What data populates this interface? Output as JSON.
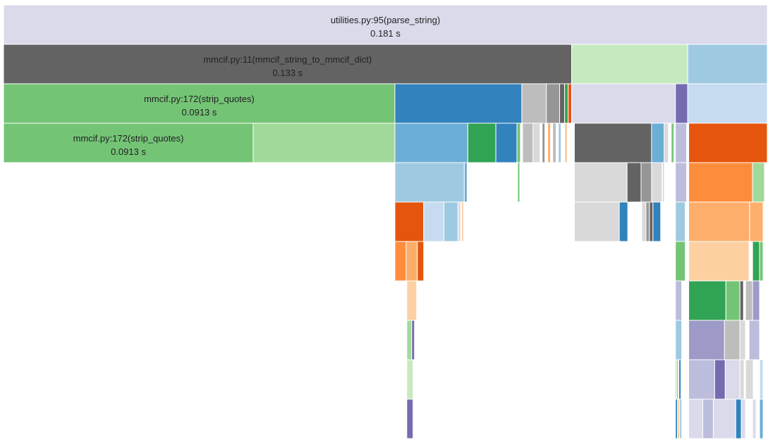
{
  "chart_data": {
    "type": "icicle",
    "title": "",
    "blocks": [
      {
        "depth": 0,
        "x0": 0.0,
        "x1": 1.0,
        "color": "#dadaeb",
        "name": "utilities.py:95(parse_string)",
        "time": "0.181 s"
      },
      {
        "depth": 1,
        "x0": 0.0,
        "x1": 0.7438,
        "color": "#636363",
        "name": "mmcif.py:11(mmcif_string_to_mmcif_dict)",
        "time": "0.133 s"
      },
      {
        "depth": 1,
        "x0": 0.7438,
        "x1": 0.8958,
        "color": "#c7e9c0"
      },
      {
        "depth": 1,
        "x0": 0.8958,
        "x1": 1.0,
        "color": "#9ecae1"
      },
      {
        "depth": 2,
        "x0": 0.0,
        "x1": 0.5124,
        "color": "#74c476",
        "name": "mmcif.py:172(strip_quotes)",
        "time": "0.0913 s"
      },
      {
        "depth": 2,
        "x0": 0.5124,
        "x1": 0.6786,
        "color": "#3182bd"
      },
      {
        "depth": 2,
        "x0": 0.6786,
        "x1": 0.7107,
        "color": "#bdbdbd"
      },
      {
        "depth": 2,
        "x0": 0.7107,
        "x1": 0.7281,
        "color": "#969696"
      },
      {
        "depth": 2,
        "x0": 0.7281,
        "x1": 0.7346,
        "color": "#636363"
      },
      {
        "depth": 2,
        "x0": 0.7346,
        "x1": 0.7392,
        "color": "#31a354"
      },
      {
        "depth": 2,
        "x0": 0.7392,
        "x1": 0.7438,
        "color": "#e6550d"
      },
      {
        "depth": 2,
        "x0": 0.7438,
        "x1": 0.8797,
        "color": "#dadaeb"
      },
      {
        "depth": 2,
        "x0": 0.8797,
        "x1": 0.8958,
        "color": "#756bb1"
      },
      {
        "depth": 2,
        "x0": 0.8958,
        "x1": 1.0,
        "color": "#c6dbef"
      },
      {
        "depth": 3,
        "x0": 0.0,
        "x1": 0.3269,
        "color": "#74c476",
        "name": "mmcif.py:172(strip_quotes)",
        "time": "0.0913 s"
      },
      {
        "depth": 3,
        "x0": 0.3269,
        "x1": 0.5124,
        "color": "#a1d99b"
      },
      {
        "depth": 3,
        "x0": 0.5124,
        "x1": 0.6079,
        "color": "#6baed6"
      },
      {
        "depth": 3,
        "x0": 0.6079,
        "x1": 0.6446,
        "color": "#31a354"
      },
      {
        "depth": 3,
        "x0": 0.6446,
        "x1": 0.6722,
        "color": "#3182bd"
      },
      {
        "depth": 3,
        "x0": 0.6722,
        "x1": 0.6768,
        "color": "#74c476"
      },
      {
        "depth": 3,
        "x0": 0.6795,
        "x1": 0.6933,
        "color": "#bdbdbd"
      },
      {
        "depth": 3,
        "x0": 0.6933,
        "x1": 0.7025,
        "color": "#d9d9d9"
      },
      {
        "depth": 3,
        "x0": 0.7052,
        "x1": 0.7088,
        "color": "#969696"
      },
      {
        "depth": 3,
        "x0": 0.7125,
        "x1": 0.7162,
        "color": "#fdae6b"
      },
      {
        "depth": 3,
        "x0": 0.719,
        "x1": 0.7236,
        "color": "#bdbdbd"
      },
      {
        "depth": 3,
        "x0": 0.7264,
        "x1": 0.73,
        "color": "#9ecae1"
      },
      {
        "depth": 3,
        "x0": 0.7346,
        "x1": 0.7383,
        "color": "#fdd0a2"
      },
      {
        "depth": 3,
        "x0": 0.7474,
        "x1": 0.8485,
        "color": "#636363"
      },
      {
        "depth": 3,
        "x0": 0.8485,
        "x1": 0.865,
        "color": "#6baed6"
      },
      {
        "depth": 3,
        "x0": 0.865,
        "x1": 0.8705,
        "color": "#d9d9d9"
      },
      {
        "depth": 3,
        "x0": 0.8742,
        "x1": 0.8778,
        "color": "#74c476"
      },
      {
        "depth": 3,
        "x0": 0.8797,
        "x1": 0.8944,
        "color": "#bcbddc"
      },
      {
        "depth": 3,
        "x0": 0.8971,
        "x1": 1.0,
        "color": "#e6550d"
      },
      {
        "depth": 4,
        "x0": 0.5124,
        "x1": 0.6033,
        "color": "#9ecae1"
      },
      {
        "depth": 4,
        "x0": 0.6033,
        "x1": 0.607,
        "color": "#6baed6"
      },
      {
        "depth": 4,
        "x0": 0.6731,
        "x1": 0.6759,
        "color": "#74c476"
      },
      {
        "depth": 4,
        "x0": 0.7474,
        "x1": 0.8164,
        "color": "#d9d9d9"
      },
      {
        "depth": 4,
        "x0": 0.8164,
        "x1": 0.8347,
        "color": "#636363"
      },
      {
        "depth": 4,
        "x0": 0.8347,
        "x1": 0.8485,
        "color": "#969696"
      },
      {
        "depth": 4,
        "x0": 0.8485,
        "x1": 0.8623,
        "color": "#d9d9d9"
      },
      {
        "depth": 4,
        "x0": 0.8632,
        "x1": 0.865,
        "color": "#9ecae1"
      },
      {
        "depth": 4,
        "x0": 0.8797,
        "x1": 0.8944,
        "color": "#bcbddc"
      },
      {
        "depth": 4,
        "x0": 0.8971,
        "x1": 0.9807,
        "color": "#fd8d3c"
      },
      {
        "depth": 4,
        "x0": 0.9807,
        "x1": 0.9963,
        "color": "#a1d99b"
      },
      {
        "depth": 5,
        "x0": 0.5124,
        "x1": 0.5501,
        "color": "#e6550d"
      },
      {
        "depth": 5,
        "x0": 0.5501,
        "x1": 0.5766,
        "color": "#c6dbef"
      },
      {
        "depth": 5,
        "x0": 0.5766,
        "x1": 0.595,
        "color": "#9ecae1"
      },
      {
        "depth": 5,
        "x0": 0.595,
        "x1": 0.5987,
        "color": "#dadaeb"
      },
      {
        "depth": 5,
        "x0": 0.5997,
        "x1": 0.6024,
        "color": "#fdd0a2"
      },
      {
        "depth": 5,
        "x0": 0.7474,
        "x1": 0.8062,
        "color": "#d9d9d9"
      },
      {
        "depth": 5,
        "x0": 0.8062,
        "x1": 0.8173,
        "color": "#3182bd"
      },
      {
        "depth": 5,
        "x0": 0.8357,
        "x1": 0.8411,
        "color": "#d9d9d9"
      },
      {
        "depth": 5,
        "x0": 0.8411,
        "x1": 0.8457,
        "color": "#969696"
      },
      {
        "depth": 5,
        "x0": 0.8457,
        "x1": 0.8503,
        "color": "#636363"
      },
      {
        "depth": 5,
        "x0": 0.8503,
        "x1": 0.8604,
        "color": "#3182bd"
      },
      {
        "depth": 5,
        "x0": 0.8797,
        "x1": 0.8926,
        "color": "#9ecae1"
      },
      {
        "depth": 5,
        "x0": 0.8971,
        "x1": 0.977,
        "color": "#fdae6b"
      },
      {
        "depth": 5,
        "x0": 0.977,
        "x1": 0.9945,
        "color": "#fdae6b"
      },
      {
        "depth": 6,
        "x0": 0.5124,
        "x1": 0.5271,
        "color": "#fd8d3c"
      },
      {
        "depth": 6,
        "x0": 0.5271,
        "x1": 0.5418,
        "color": "#fdae6b"
      },
      {
        "depth": 6,
        "x0": 0.5418,
        "x1": 0.5501,
        "color": "#e6550d"
      },
      {
        "depth": 6,
        "x0": 0.8797,
        "x1": 0.8926,
        "color": "#74c476"
      },
      {
        "depth": 6,
        "x0": 0.8971,
        "x1": 0.9761,
        "color": "#fdd0a2"
      },
      {
        "depth": 6,
        "x0": 0.9807,
        "x1": 0.9899,
        "color": "#31a354"
      },
      {
        "depth": 6,
        "x0": 0.9899,
        "x1": 0.9945,
        "color": "#74c476"
      },
      {
        "depth": 7,
        "x0": 0.528,
        "x1": 0.5409,
        "color": "#fdd0a2"
      },
      {
        "depth": 7,
        "x0": 0.8797,
        "x1": 0.888,
        "color": "#bcbddc"
      },
      {
        "depth": 7,
        "x0": 0.8971,
        "x1": 0.9458,
        "color": "#31a354"
      },
      {
        "depth": 7,
        "x0": 0.9458,
        "x1": 0.9642,
        "color": "#74c476"
      },
      {
        "depth": 7,
        "x0": 0.9642,
        "x1": 0.9688,
        "color": "#636363"
      },
      {
        "depth": 7,
        "x0": 0.9715,
        "x1": 0.9807,
        "color": "#bdbdbd"
      },
      {
        "depth": 7,
        "x0": 0.9807,
        "x1": 0.9899,
        "color": "#9e9ac8"
      },
      {
        "depth": 8,
        "x0": 0.528,
        "x1": 0.5344,
        "color": "#a1d99b"
      },
      {
        "depth": 8,
        "x0": 0.5344,
        "x1": 0.5381,
        "color": "#756bb1"
      },
      {
        "depth": 8,
        "x0": 0.8797,
        "x1": 0.888,
        "color": "#9ecae1"
      },
      {
        "depth": 8,
        "x0": 0.8971,
        "x1": 0.944,
        "color": "#9e9ac8"
      },
      {
        "depth": 8,
        "x0": 0.944,
        "x1": 0.9642,
        "color": "#bdbdbd"
      },
      {
        "depth": 8,
        "x0": 0.9642,
        "x1": 0.9715,
        "color": "#d9d9d9"
      },
      {
        "depth": 8,
        "x0": 0.9761,
        "x1": 0.9899,
        "color": "#bcbddc"
      },
      {
        "depth": 9,
        "x0": 0.528,
        "x1": 0.5362,
        "color": "#c7e9c0"
      },
      {
        "depth": 9,
        "x0": 0.8797,
        "x1": 0.8815,
        "color": "#a1d99b"
      },
      {
        "depth": 9,
        "x0": 0.8815,
        "x1": 0.8833,
        "color": "#fd8d3c"
      },
      {
        "depth": 9,
        "x0": 0.8842,
        "x1": 0.887,
        "color": "#3182bd"
      },
      {
        "depth": 9,
        "x0": 0.8971,
        "x1": 0.9311,
        "color": "#bcbddc"
      },
      {
        "depth": 9,
        "x0": 0.9311,
        "x1": 0.9449,
        "color": "#756bb1"
      },
      {
        "depth": 9,
        "x0": 0.9449,
        "x1": 0.9642,
        "color": "#dadaeb"
      },
      {
        "depth": 9,
        "x0": 0.9642,
        "x1": 0.9697,
        "color": "#d9d9d9"
      },
      {
        "depth": 9,
        "x0": 0.9715,
        "x1": 0.9816,
        "color": "#d9d9d9"
      },
      {
        "depth": 9,
        "x0": 0.9899,
        "x1": 0.9945,
        "color": "#c6dbef"
      },
      {
        "depth": 10,
        "x0": 0.528,
        "x1": 0.5362,
        "color": "#756bb1"
      },
      {
        "depth": 10,
        "x0": 0.8797,
        "x1": 0.8824,
        "color": "#3182bd"
      },
      {
        "depth": 10,
        "x0": 0.8824,
        "x1": 0.8852,
        "color": "#fdd0a2"
      },
      {
        "depth": 10,
        "x0": 0.8852,
        "x1": 0.888,
        "color": "#9ecae1"
      },
      {
        "depth": 10,
        "x0": 0.8971,
        "x1": 0.9155,
        "color": "#dadaeb"
      },
      {
        "depth": 10,
        "x0": 0.9155,
        "x1": 0.9293,
        "color": "#bcbddc"
      },
      {
        "depth": 10,
        "x0": 0.9293,
        "x1": 0.9587,
        "color": "#dadaeb"
      },
      {
        "depth": 10,
        "x0": 0.9587,
        "x1": 0.966,
        "color": "#3182bd"
      },
      {
        "depth": 10,
        "x0": 0.966,
        "x1": 0.9715,
        "color": "#dadaeb"
      },
      {
        "depth": 10,
        "x0": 0.9807,
        "x1": 0.9853,
        "color": "#dadaeb"
      },
      {
        "depth": 10,
        "x0": 0.9899,
        "x1": 0.9945,
        "color": "#6baed6"
      }
    ]
  }
}
